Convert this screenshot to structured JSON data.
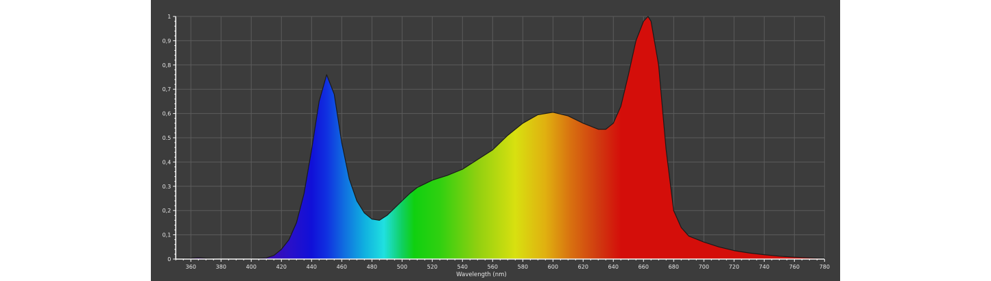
{
  "chart_data": {
    "type": "area",
    "title": "",
    "xlabel": "Wavelength (nm)",
    "ylabel": "",
    "xlim": [
      350,
      780
    ],
    "ylim": [
      0,
      1
    ],
    "grid": true,
    "legend": "none",
    "x_ticks": [
      "360",
      "380",
      "400",
      "420",
      "440",
      "460",
      "480",
      "500",
      "520",
      "540",
      "560",
      "580",
      "600",
      "620",
      "640",
      "660",
      "680",
      "700",
      "720",
      "740",
      "760",
      "780"
    ],
    "y_ticks": [
      "0",
      "0,1",
      "0,2",
      "0.3",
      "0,4",
      "0.5",
      "0,6",
      "0,7",
      "0,8",
      "0,9",
      "1"
    ],
    "fill": "spectral gradient (wavelength color)",
    "colors": {
      "background": "#3c3c3c",
      "grid": "#5c5c5c",
      "axis": "#ffffff",
      "outline": "#1a1a1a"
    },
    "x": [
      350,
      360,
      365,
      370,
      380,
      390,
      400,
      410,
      415,
      420,
      425,
      430,
      435,
      440,
      445,
      450,
      455,
      460,
      465,
      470,
      475,
      480,
      485,
      490,
      495,
      500,
      505,
      510,
      515,
      520,
      530,
      540,
      550,
      560,
      570,
      580,
      590,
      600,
      610,
      620,
      630,
      635,
      640,
      645,
      650,
      655,
      660,
      663,
      665,
      670,
      675,
      680,
      685,
      690,
      700,
      710,
      720,
      730,
      740,
      750,
      760,
      770,
      780
    ],
    "y": [
      0.002,
      0.004,
      0.006,
      0.004,
      0.001,
      0.002,
      0.002,
      0.005,
      0.015,
      0.04,
      0.08,
      0.15,
      0.27,
      0.45,
      0.65,
      0.76,
      0.68,
      0.48,
      0.33,
      0.24,
      0.19,
      0.165,
      0.16,
      0.18,
      0.21,
      0.24,
      0.27,
      0.295,
      0.31,
      0.325,
      0.345,
      0.37,
      0.41,
      0.45,
      0.51,
      0.56,
      0.595,
      0.605,
      0.59,
      0.56,
      0.535,
      0.535,
      0.56,
      0.63,
      0.76,
      0.9,
      0.98,
      1.0,
      0.98,
      0.8,
      0.45,
      0.2,
      0.13,
      0.095,
      0.07,
      0.05,
      0.035,
      0.025,
      0.018,
      0.012,
      0.008,
      0.005,
      0.003
    ]
  }
}
